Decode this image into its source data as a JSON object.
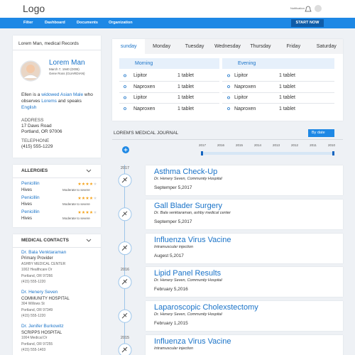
{
  "header": {
    "logo": "Logo",
    "notification": "Notification"
  },
  "nav": {
    "items": [
      "Filter",
      "Dashboard",
      "Documents",
      "Organization"
    ],
    "button": "START NOW"
  },
  "profile": {
    "title": "Lorem Man, medical Records",
    "name": "Lorem Man",
    "dob": "March 7, 1940 (DOB)",
    "guardian": "Gene Ross (GUARDIAN)",
    "bio": [
      {
        "text": "Ellen is a",
        "link": false
      },
      {
        "text": "widowed Asian Male",
        "link": true
      },
      {
        "text": "who observes",
        "link": false
      },
      {
        "text": "Lorems",
        "link": true
      },
      {
        "text": "and speaks",
        "link": false
      },
      {
        "text": "English",
        "link": true
      }
    ],
    "address_label": "ADDRESS",
    "address": [
      "17 Daws Road",
      "Portland, OR 97006"
    ],
    "telephone_label": "TELEPHONE",
    "telephone": "(415) 555-1229"
  },
  "allergies": {
    "title": "ALLERGIES",
    "items": [
      {
        "name": "Penicillin",
        "reaction": "Hives",
        "severity": "Moderate to severe"
      },
      {
        "name": "Penicillin",
        "reaction": "Hives",
        "severity": "Moderate to severe"
      },
      {
        "name": "Penicillin",
        "reaction": "Hives",
        "severity": "Moderate to severe"
      }
    ]
  },
  "contacts": {
    "title": "MEDICAL CONTACTS",
    "items": [
      {
        "name": "Dr. Bala Venktaraman",
        "lines": [
          "Primary Provider",
          "ASHBY MEDICAL CENTER",
          "1002 Healthcare Dr",
          "Portland, OR 97266",
          "(415) 555-1220"
        ]
      },
      {
        "name": "Dr. Henery Seven",
        "lines": [
          "COMMUNITY HOSPITAL",
          "304 Willows St",
          "Portland, OR 97349",
          "(415) 555-1220"
        ]
      },
      {
        "name": "Dr. Jenifer Burkowitz",
        "lines": [
          "SCRIPPS HOSPITAL",
          "1004 Medical Dr",
          "Portland, OR 97255",
          "(415) 555-1403"
        ]
      }
    ]
  },
  "schedule": {
    "days": [
      "sunday",
      "Monday",
      "Tuesday",
      "Wednesday",
      "Thursday",
      "Friday",
      "Saturday"
    ],
    "morning": {
      "label": "Morning",
      "meds": [
        {
          "name": "Lipitor",
          "dose": "1 tablet"
        },
        {
          "name": "Naproxen",
          "dose": "1 tablet"
        },
        {
          "name": "Lipitor",
          "dose": "1 tablet"
        },
        {
          "name": "Naproxen",
          "dose": "1 tablet"
        }
      ]
    },
    "evening": {
      "label": "Evening",
      "meds": [
        {
          "name": "Lipitor",
          "dose": "1 tablet"
        },
        {
          "name": "Naproxen",
          "dose": "1 tablet"
        },
        {
          "name": "Lipitor",
          "dose": "1 tablet"
        },
        {
          "name": "Naproxen",
          "dose": "1 tablet"
        }
      ]
    }
  },
  "journal": {
    "title": "LOREM'S MEDICAL JOURNAL",
    "sort": "By date",
    "years": [
      "2017",
      "2016",
      "2015",
      "2014",
      "2013",
      "2012",
      "2011",
      "2010"
    ],
    "entries": [
      {
        "year": "2017",
        "title": "Asthma Check-Up",
        "subtitle": "Dr. Henery Seven, Community Hospital",
        "date": "Septemper 5,2017"
      },
      {
        "title": "Gall Blader Surgery",
        "subtitle": "Dr. Bala venktaraman, ashby medical center",
        "date": "Septemper 5,2017"
      },
      {
        "title": "Influenza Virus Vacine",
        "subtitle": "Intramuscular injection",
        "date": "Augest 5,2017"
      },
      {
        "year": "2016",
        "title": "Lipid Panel Results",
        "subtitle": "Dr. Henery Seven, Community Hospital",
        "date": "February 5,2016"
      },
      {
        "title": "Laparoscopic Cholexstectomy",
        "subtitle": "Dr. Henery Seven, Community Hospital",
        "date": "February 1,2015"
      },
      {
        "year": "2015",
        "title": "Influenza Virus Vacine",
        "subtitle": "Intramuscular injection"
      }
    ]
  }
}
